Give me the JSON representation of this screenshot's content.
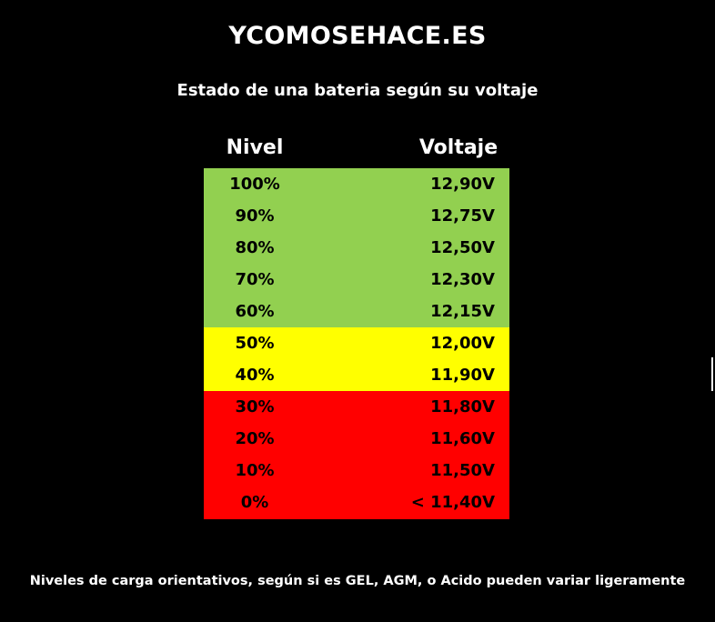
{
  "site_title": "YCOMOSEHACE.ES",
  "footnote": "Niveles de carga orientativos, según si es GEL, AGM, o Acido pueden variar ligeramente",
  "colors": {
    "background": "#000000",
    "high": "#92d050",
    "medium": "#ffff00",
    "low": "#ff0000"
  },
  "chart_data": {
    "type": "table",
    "title": "Estado de una bateria según su voltaje",
    "columns": [
      "Nivel",
      "Voltaje"
    ],
    "rows": [
      {
        "level": "100%",
        "voltage": "12,90V",
        "band": "high"
      },
      {
        "level": "90%",
        "voltage": "12,75V",
        "band": "high"
      },
      {
        "level": "80%",
        "voltage": "12,50V",
        "band": "high"
      },
      {
        "level": "70%",
        "voltage": "12,30V",
        "band": "high"
      },
      {
        "level": "60%",
        "voltage": "12,15V",
        "band": "high"
      },
      {
        "level": "50%",
        "voltage": "12,00V",
        "band": "medium"
      },
      {
        "level": "40%",
        "voltage": "11,90V",
        "band": "medium"
      },
      {
        "level": "30%",
        "voltage": "11,80V",
        "band": "low"
      },
      {
        "level": "20%",
        "voltage": "11,60V",
        "band": "low"
      },
      {
        "level": "10%",
        "voltage": "11,50V",
        "band": "low"
      },
      {
        "level": "0%",
        "voltage": "< 11,40V",
        "band": "low"
      }
    ]
  }
}
